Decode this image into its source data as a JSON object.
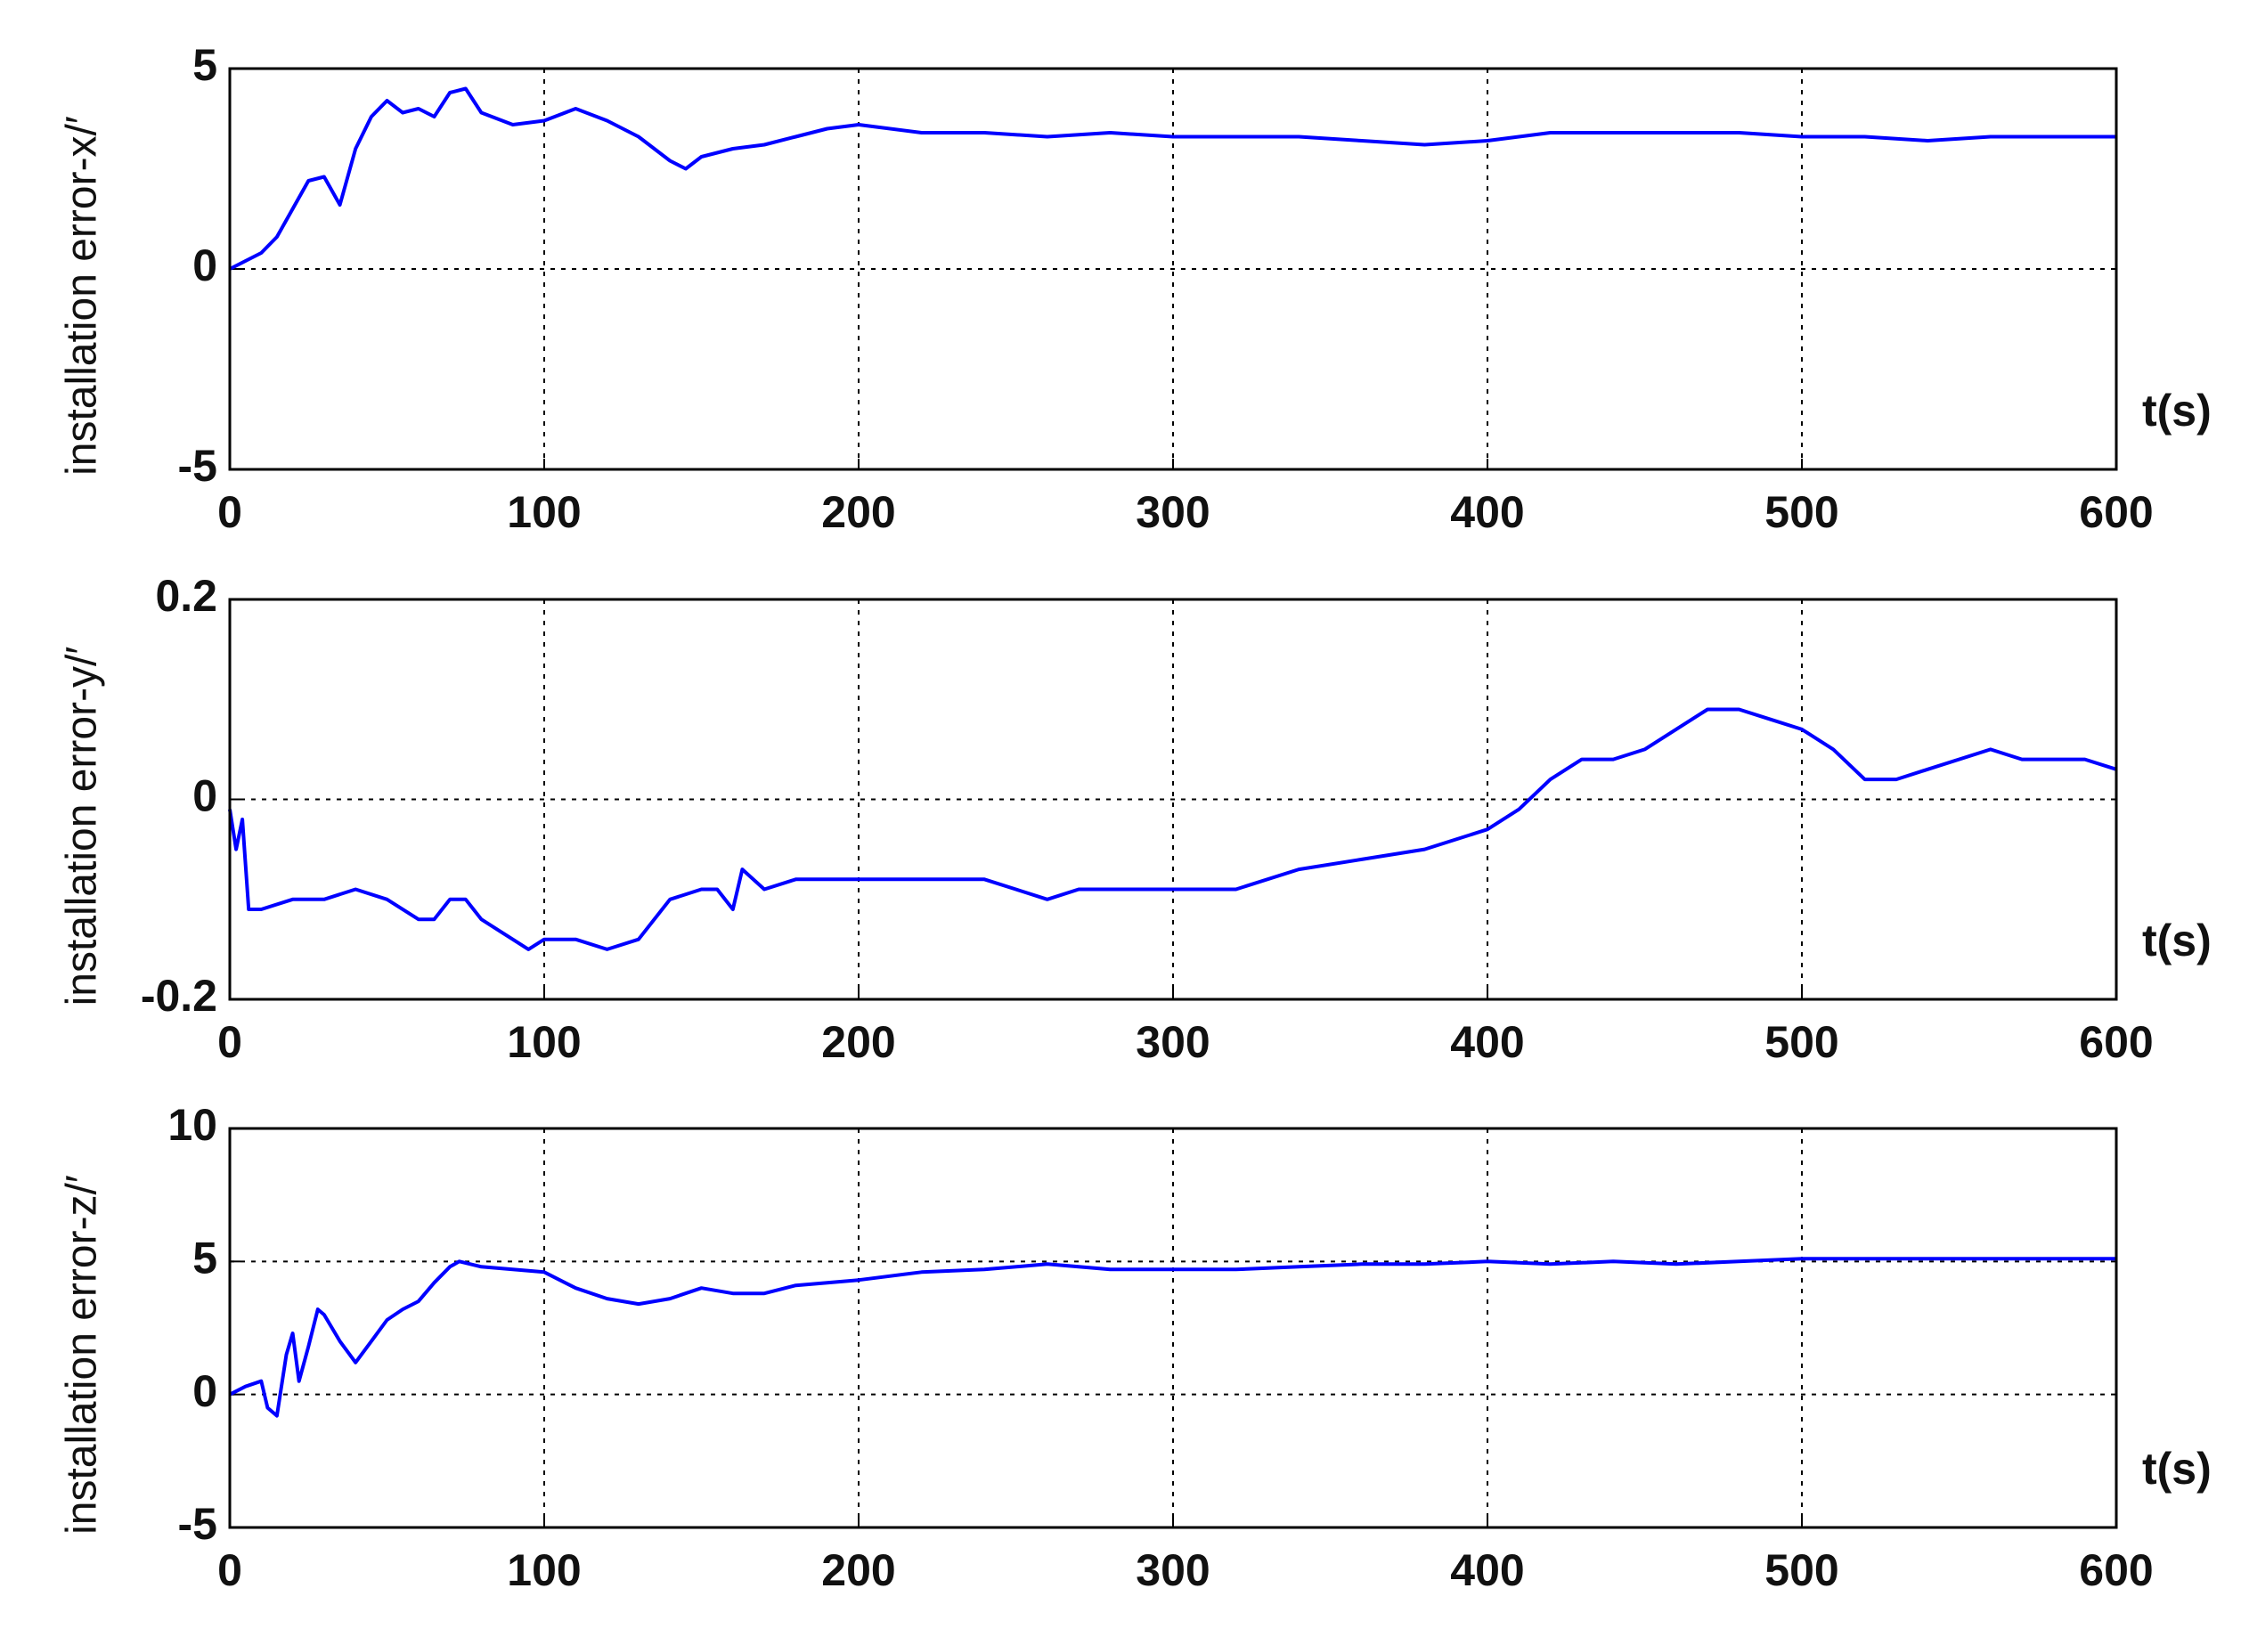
{
  "chart_data": [
    {
      "type": "line",
      "ylabel": "installation error-x/′",
      "xlabel": "t(s)",
      "color": "#0000ff",
      "grid": true,
      "xlim": [
        0,
        600
      ],
      "xticks": [
        0,
        100,
        200,
        300,
        400,
        500,
        600
      ],
      "ylim": [
        -5,
        5
      ],
      "yticks": [
        -5,
        0,
        5
      ],
      "x": [
        0,
        5,
        10,
        15,
        20,
        25,
        30,
        35,
        40,
        45,
        50,
        55,
        60,
        65,
        70,
        75,
        80,
        90,
        100,
        110,
        120,
        130,
        140,
        145,
        150,
        160,
        170,
        180,
        190,
        200,
        220,
        240,
        260,
        280,
        300,
        320,
        340,
        360,
        380,
        400,
        420,
        440,
        460,
        480,
        500,
        520,
        540,
        560,
        580,
        600
      ],
      "values": [
        0,
        0.2,
        0.4,
        0.8,
        1.5,
        2.2,
        2.3,
        1.6,
        3,
        3.8,
        4.2,
        3.9,
        4.0,
        3.8,
        4.4,
        4.5,
        3.9,
        3.6,
        3.7,
        4.0,
        3.7,
        3.3,
        2.7,
        2.5,
        2.8,
        3.0,
        3.1,
        3.3,
        3.5,
        3.6,
        3.4,
        3.4,
        3.3,
        3.4,
        3.3,
        3.3,
        3.3,
        3.2,
        3.1,
        3.2,
        3.4,
        3.4,
        3.4,
        3.4,
        3.3,
        3.3,
        3.2,
        3.3,
        3.3,
        3.3
      ]
    },
    {
      "type": "line",
      "ylabel": "installation error-y/′",
      "xlabel": "t(s)",
      "color": "#0000ff",
      "grid": true,
      "xlim": [
        0,
        600
      ],
      "xticks": [
        0,
        100,
        200,
        300,
        400,
        500,
        600
      ],
      "ylim": [
        -0.2,
        0.2
      ],
      "yticks": [
        -0.2,
        0,
        0.2
      ],
      "x": [
        0,
        2,
        4,
        6,
        10,
        20,
        30,
        40,
        50,
        60,
        65,
        70,
        75,
        80,
        85,
        90,
        95,
        100,
        110,
        120,
        130,
        140,
        150,
        155,
        160,
        163,
        170,
        180,
        200,
        220,
        240,
        250,
        260,
        270,
        290,
        300,
        310,
        320,
        340,
        360,
        380,
        400,
        410,
        420,
        430,
        440,
        450,
        460,
        470,
        480,
        490,
        500,
        510,
        520,
        530,
        540,
        560,
        570,
        580,
        590,
        600
      ],
      "values": [
        -0.01,
        -0.05,
        -0.02,
        -0.11,
        -0.11,
        -0.1,
        -0.1,
        -0.09,
        -0.1,
        -0.12,
        -0.12,
        -0.1,
        -0.1,
        -0.12,
        -0.13,
        -0.14,
        -0.15,
        -0.14,
        -0.14,
        -0.15,
        -0.14,
        -0.1,
        -0.09,
        -0.09,
        -0.11,
        -0.07,
        -0.09,
        -0.08,
        -0.08,
        -0.08,
        -0.08,
        -0.09,
        -0.1,
        -0.09,
        -0.09,
        -0.09,
        -0.09,
        -0.09,
        -0.07,
        -0.06,
        -0.05,
        -0.03,
        -0.01,
        0.02,
        0.04,
        0.04,
        0.05,
        0.07,
        0.09,
        0.09,
        0.08,
        0.07,
        0.05,
        0.02,
        0.02,
        0.03,
        0.05,
        0.04,
        0.04,
        0.04,
        0.03
      ]
    },
    {
      "type": "line",
      "ylabel": "installation error-z/′",
      "xlabel": "t(s)",
      "color": "#0000ff",
      "grid": true,
      "xlim": [
        0,
        600
      ],
      "xticks": [
        0,
        100,
        200,
        300,
        400,
        500,
        600
      ],
      "ylim": [
        -5,
        10
      ],
      "yticks": [
        -5,
        0,
        5,
        10
      ],
      "x": [
        0,
        5,
        10,
        12,
        15,
        18,
        20,
        22,
        25,
        28,
        30,
        35,
        40,
        45,
        50,
        55,
        60,
        65,
        70,
        73,
        80,
        90,
        100,
        110,
        120,
        130,
        140,
        150,
        160,
        170,
        180,
        200,
        220,
        240,
        260,
        280,
        300,
        320,
        340,
        360,
        380,
        400,
        420,
        440,
        460,
        480,
        500,
        540,
        600
      ],
      "values": [
        0,
        0.3,
        0.5,
        -0.5,
        -0.8,
        1.5,
        2.3,
        0.5,
        1.8,
        3.2,
        3.0,
        2.0,
        1.2,
        2.0,
        2.8,
        3.2,
        3.5,
        4.2,
        4.8,
        5.0,
        4.8,
        4.7,
        4.6,
        4.0,
        3.6,
        3.4,
        3.6,
        4.0,
        3.8,
        3.8,
        4.1,
        4.3,
        4.6,
        4.7,
        4.9,
        4.7,
        4.7,
        4.7,
        4.8,
        4.9,
        4.9,
        5.0,
        4.9,
        5.0,
        4.9,
        5.0,
        5.1,
        5.1,
        5.1
      ]
    }
  ]
}
